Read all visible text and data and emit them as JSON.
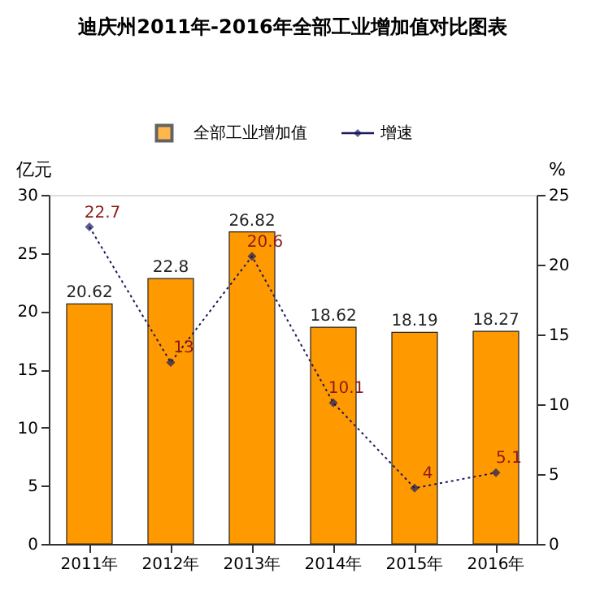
{
  "chart_data": {
    "type": "bar",
    "title": "迪庆州2011年-2016年全部工业增加值对比图表",
    "categories": [
      "2011年",
      "2012年",
      "2013年",
      "2014年",
      "2015年",
      "2016年"
    ],
    "series": [
      {
        "name": "全部工业增加值",
        "color": "#ff9900",
        "values": [
          20.62,
          22.8,
          26.82,
          18.62,
          18.19,
          18.27
        ]
      },
      {
        "name": "增速",
        "type": "line",
        "axis": "y2",
        "color": "#1a1a5e",
        "marker": "diamond",
        "line_style": "dotted",
        "values": [
          22.7,
          13,
          20.6,
          10.1,
          4,
          5.1
        ]
      }
    ],
    "ylabel": "亿元",
    "y2label": "%",
    "ylim": [
      0,
      30
    ],
    "yticks": [
      0,
      5,
      10,
      15,
      20,
      25,
      30
    ],
    "y2lim": [
      0,
      25
    ],
    "y2ticks": [
      0,
      5,
      10,
      15,
      20,
      25
    ],
    "data_labels": true,
    "grid": false,
    "legend": "top"
  }
}
